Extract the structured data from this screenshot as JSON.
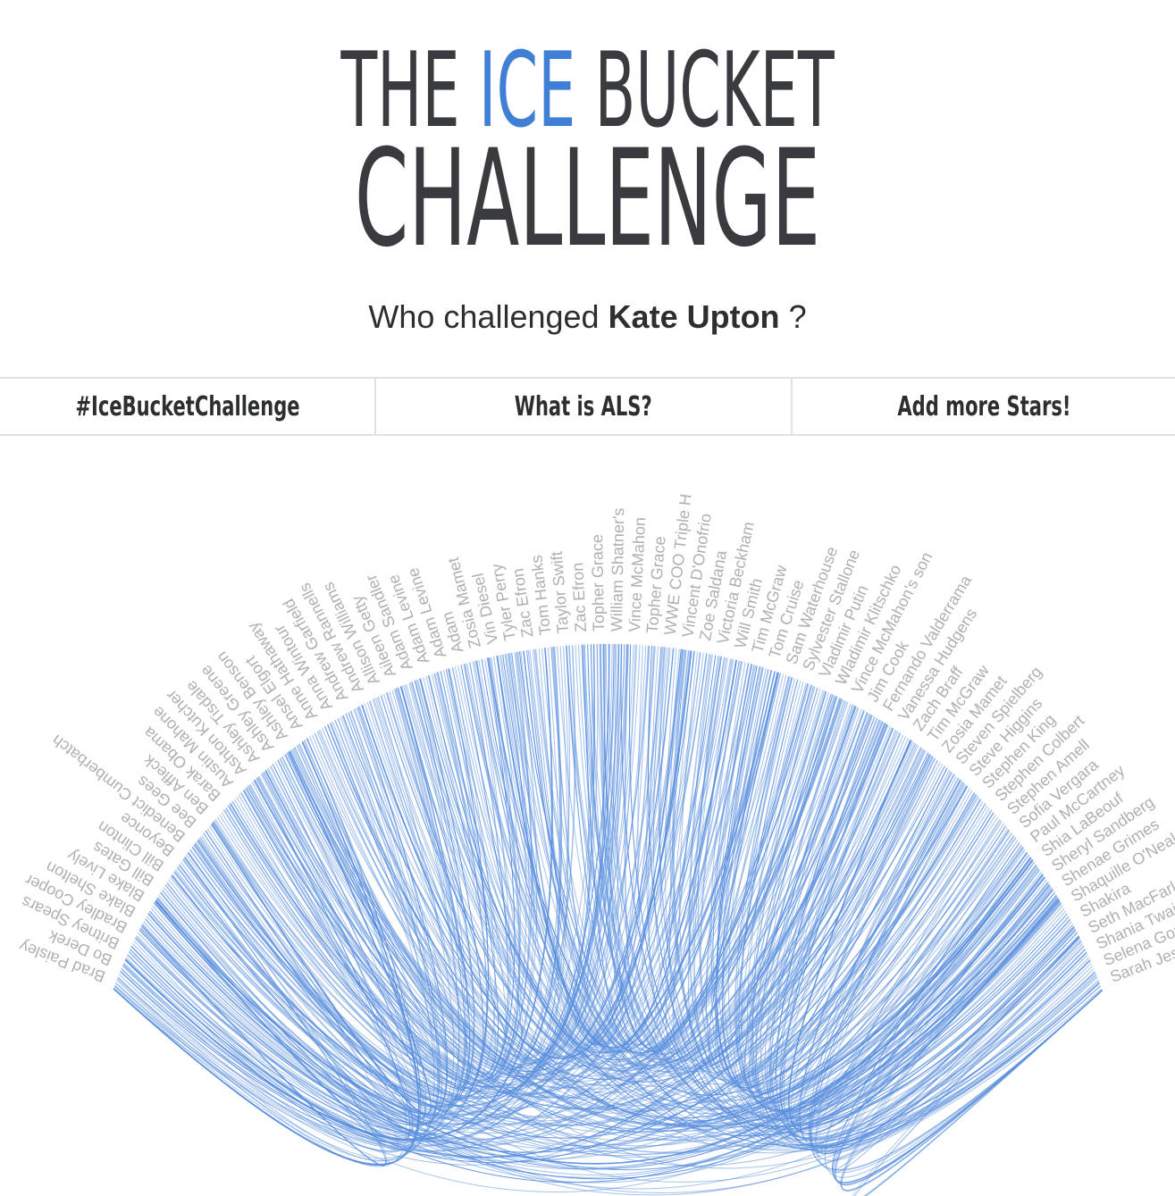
{
  "header": {
    "title_the": "THE",
    "title_ice": "ICE",
    "title_bucket": "BUCKET",
    "title_challenge": "CHALLENGE",
    "subtitle_prefix": "Who challenged",
    "subtitle_name": "Kate Upton",
    "subtitle_suffix": "?"
  },
  "nav": {
    "items": [
      {
        "label": "#IceBucketChallenge"
      },
      {
        "label": "What is ALS?"
      },
      {
        "label": "Add more Stars!"
      }
    ]
  },
  "colors": {
    "title": "#3a3b3e",
    "accent": "#3f7fd5",
    "link": "#5b8fde",
    "label": "#b0b0b0",
    "divider": "#e2e2e2"
  },
  "chart_data": {
    "type": "chord",
    "nodes": [
      "Brad Paisley",
      "Bo Derek",
      "Britney Spears",
      "Bradley Cooper",
      "Blake Shelton",
      "Blake Lively",
      "Bill Gates",
      "Bill Clinton",
      "Beyonce",
      "Benedict Cumberbatch",
      "Bee Gees",
      "Ben Affleck",
      "Barak Obama",
      "Austin Mahone",
      "Ashton Kutcher",
      "Ashley Tisdale",
      "Ashley Greene",
      "Ashley Benson",
      "Ansel Elgort",
      "Anne Hathaway",
      "Anna Wintour",
      "Andrew Garfield",
      "Andrew Rannells",
      "Allison Williams",
      "Aileen Getty",
      "Adam Sandler",
      "Adam Levine",
      "Adam Levine",
      "Adam",
      "Zosia Mamet",
      "Vin Diesel",
      "Tyler Perry",
      "Zac Efron",
      "Tom Hanks",
      "Taylor Swift",
      "Zac Efron",
      "Topher Grace",
      "William Shatner's",
      "Vince McMahon",
      "Topher Grace",
      "WWE COO Triple H",
      "Vincent D'Onofrio",
      "Zoe Saldana",
      "Victoria Beckham",
      "Will Smith",
      "Tim McGraw",
      "Tom Cruise",
      "Sam Waterhouse",
      "Sylvester Stallone",
      "Vladimir Putin",
      "Wladimir Klitschko",
      "Vince McMahon's son",
      "Jim Cook",
      "Fernando Valderrama",
      "Vanessa Hudgens",
      "Zach Braff",
      "Tim McGraw",
      "Zosia Mamet",
      "Steven Spielberg",
      "Steve Higgins",
      "Stephen King",
      "Stephen Colbert",
      "Stephen Amell",
      "Sofia Vergara",
      "Paul McCartney",
      "Shia LaBeouf",
      "Sheryl Sandberg",
      "Shenae Grimes",
      "Shaquille O'Neal",
      "Shakira",
      "Seth MacFarlane",
      "Shania Twain",
      "Selena Gomez",
      "Sarah Jessica"
    ]
  }
}
